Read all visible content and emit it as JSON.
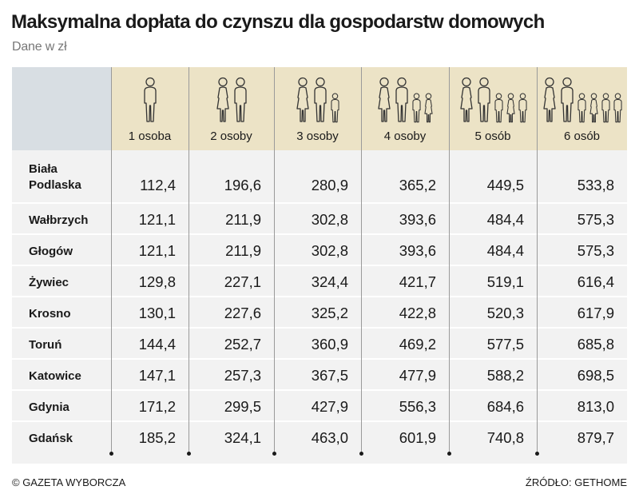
{
  "title": "Maksymalna dopłata do czynszu dla gospodarstw domowych",
  "subtitle": "Dane w zł",
  "footer": {
    "copyright": "© GAZETA WYBORCZA",
    "source": "ŹRÓDŁO: GETHOME"
  },
  "colors": {
    "header_band": "#ece3c6",
    "corner": "#d8dee3",
    "panel": "#f2f2f2",
    "icon_stroke": "#333333"
  },
  "chart_data": {
    "type": "table",
    "title": "Maksymalna dopłata do czynszu dla gospodarstw domowych",
    "subtitle": "Dane w zł",
    "columns": [
      "1 osoba",
      "2 osoby",
      "3 osoby",
      "4 osoby",
      "5 osób",
      "6 osób"
    ],
    "rows": [
      {
        "city": "Biała\nPodlaska",
        "values": [
          "112,4",
          "196,6",
          "280,9",
          "365,2",
          "449,5",
          "533,8"
        ]
      },
      {
        "city": "Wałbrzych",
        "values": [
          "121,1",
          "211,9",
          "302,8",
          "393,6",
          "484,4",
          "575,3"
        ]
      },
      {
        "city": "Głogów",
        "values": [
          "121,1",
          "211,9",
          "302,8",
          "393,6",
          "484,4",
          "575,3"
        ]
      },
      {
        "city": "Żywiec",
        "values": [
          "129,8",
          "227,1",
          "324,4",
          "421,7",
          "519,1",
          "616,4"
        ]
      },
      {
        "city": "Krosno",
        "values": [
          "130,1",
          "227,6",
          "325,2",
          "422,8",
          "520,3",
          "617,9"
        ]
      },
      {
        "city": "Toruń",
        "values": [
          "144,4",
          "252,7",
          "360,9",
          "469,2",
          "577,5",
          "685,8"
        ]
      },
      {
        "city": "Katowice",
        "values": [
          "147,1",
          "257,3",
          "367,5",
          "477,9",
          "588,2",
          "698,5"
        ]
      },
      {
        "city": "Gdynia",
        "values": [
          "171,2",
          "299,5",
          "427,9",
          "556,3",
          "684,6",
          "813,0"
        ]
      },
      {
        "city": "Gdańsk",
        "values": [
          "185,2",
          "324,1",
          "463,0",
          "601,9",
          "740,8",
          "879,7"
        ]
      }
    ],
    "household_icons": [
      [
        "adult"
      ],
      [
        "adult-f",
        "adult"
      ],
      [
        "adult-f",
        "adult",
        "child"
      ],
      [
        "adult-f",
        "adult",
        "child",
        "child-f"
      ],
      [
        "adult-f",
        "adult",
        "child",
        "child-f",
        "child"
      ],
      [
        "adult-f",
        "adult",
        "child",
        "child-f",
        "child",
        "child"
      ]
    ]
  }
}
